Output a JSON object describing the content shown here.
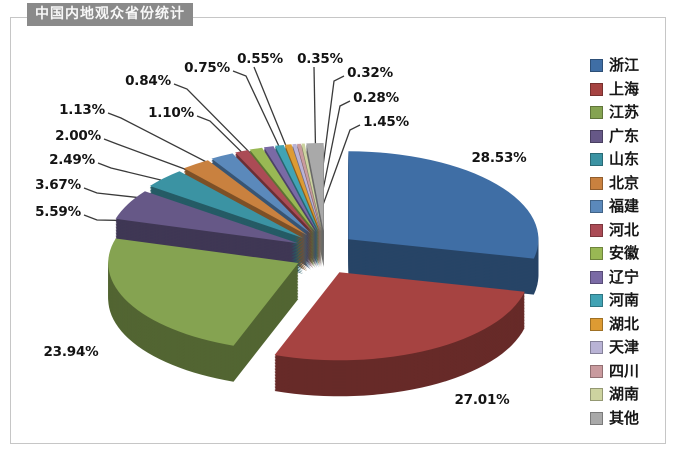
{
  "window": {
    "title": "中国内地观众省份统计"
  },
  "chart_data": {
    "type": "pie",
    "style": "3d-exploded",
    "title": "中国内地观众省份统计",
    "unit": "%",
    "legend_position": "right",
    "total": 100.0,
    "slices": [
      {
        "name": "浙江",
        "value": 28.53,
        "label": "28.53%",
        "color": "#3f6ea5"
      },
      {
        "name": "上海",
        "value": 27.01,
        "label": "27.01%",
        "color": "#a64341"
      },
      {
        "name": "江苏",
        "value": 23.94,
        "label": "23.94%",
        "color": "#85a351"
      },
      {
        "name": "广东",
        "value": 5.59,
        "label": "5.59%",
        "color": "#665887"
      },
      {
        "name": "山东",
        "value": 3.67,
        "label": "3.67%",
        "color": "#3b93a3"
      },
      {
        "name": "北京",
        "value": 2.49,
        "label": "2.49%",
        "color": "#c9813f"
      },
      {
        "name": "福建",
        "value": 2.0,
        "label": "2.00%",
        "color": "#5b89bb"
      },
      {
        "name": "河北",
        "value": 1.13,
        "label": "1.13%",
        "color": "#ab4b55"
      },
      {
        "name": "安徽",
        "value": 1.1,
        "label": "1.10%",
        "color": "#99b854"
      },
      {
        "name": "辽宁",
        "value": 0.84,
        "label": "0.84%",
        "color": "#7a6aa5"
      },
      {
        "name": "河南",
        "value": 0.75,
        "label": "0.75%",
        "color": "#41a3b4"
      },
      {
        "name": "湖北",
        "value": 0.55,
        "label": "0.55%",
        "color": "#dd9b33"
      },
      {
        "name": "天津",
        "value": 0.35,
        "label": "0.35%",
        "color": "#b9b3d5"
      },
      {
        "name": "四川",
        "value": 0.32,
        "label": "0.32%",
        "color": "#c99a9e"
      },
      {
        "name": "湖南",
        "value": 0.28,
        "label": "0.28%",
        "color": "#cdd3a0"
      },
      {
        "name": "其他",
        "value": 1.45,
        "label": "1.45%",
        "color": "#a9a9a9"
      }
    ]
  }
}
